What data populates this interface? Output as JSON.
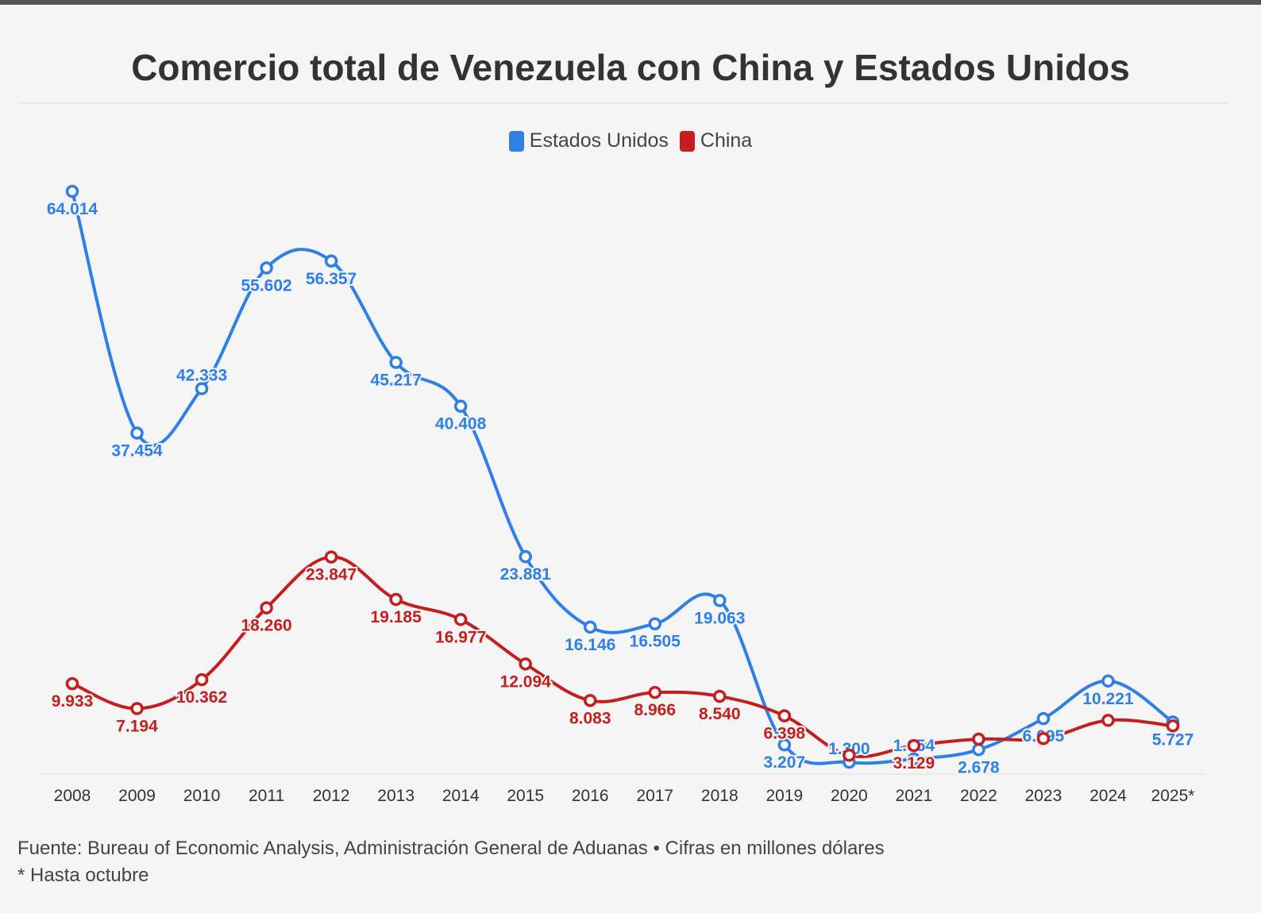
{
  "chart_data": {
    "type": "line",
    "title": "Comercio total de Venezuela con China y Estados Unidos",
    "categories": [
      "2008",
      "2009",
      "2010",
      "2011",
      "2012",
      "2013",
      "2014",
      "2015",
      "2016",
      "2017",
      "2018",
      "2019",
      "2020",
      "2021",
      "2022",
      "2023",
      "2024",
      "2025*"
    ],
    "series": [
      {
        "name": "Estados Unidos",
        "color": "#2e7fe6",
        "values": [
          64014,
          37454,
          42333,
          55602,
          56357,
          45217,
          40408,
          23881,
          16146,
          16505,
          19063,
          3207,
          1300,
          1654,
          2678,
          6095,
          10221,
          5727
        ],
        "labels": [
          "64.014",
          "37.454",
          "42.333",
          "55.602",
          "56.357",
          "45.217",
          "40.408",
          "23.881",
          "16.146",
          "16.505",
          "19.063",
          "3.207",
          "1.300",
          "1.654",
          "2.678",
          "6.095",
          "10.221",
          "5.727"
        ],
        "label_position": [
          "below",
          "below",
          "above",
          "below",
          "below",
          "below",
          "below",
          "below",
          "below",
          "below",
          "below",
          "below",
          "above",
          "above",
          "below",
          "below",
          "below",
          "below"
        ]
      },
      {
        "name": "China",
        "color": "#c41e1e",
        "values": [
          9933,
          7194,
          10362,
          18260,
          23847,
          19185,
          16977,
          12094,
          8083,
          8966,
          8540,
          6398,
          2070,
          3129,
          3835,
          3900,
          5900,
          5300
        ],
        "labels": [
          "9.933",
          "7.194",
          "10.362",
          "18.260",
          "23.847",
          "19.185",
          "16.977",
          "12.094",
          "8.083",
          "8.966",
          "8.540",
          "6.398",
          "",
          "3.129",
          "",
          "",
          "",
          ""
        ],
        "label_position": [
          "below",
          "below",
          "below",
          "below",
          "below",
          "below",
          "below",
          "below",
          "below",
          "below",
          "below",
          "below",
          "below",
          "below",
          "below",
          "below",
          "below",
          "below"
        ]
      }
    ],
    "ylim": [
      0,
      64014
    ],
    "grid": false,
    "legend_position": "top-center",
    "xlabel": "",
    "ylabel": ""
  },
  "footer": {
    "source": "Fuente: Bureau of Economic Analysis, Administración General de Aduanas • Cifras en millones dólares",
    "note": "* Hasta octubre"
  }
}
